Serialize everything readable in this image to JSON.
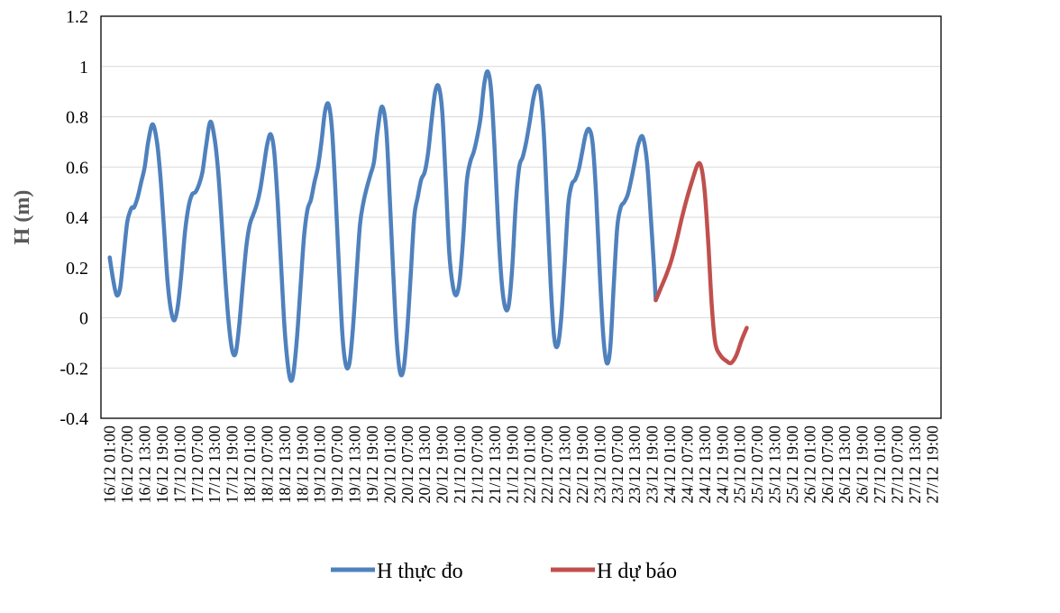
{
  "chart_data": {
    "type": "line",
    "ylabel": "H (m)",
    "ylim": [
      -0.4,
      1.2
    ],
    "yticks": [
      -0.4,
      -0.2,
      0,
      0.2,
      0.4,
      0.6,
      0.8,
      1,
      1.2
    ],
    "ytick_labels": [
      "-0.4",
      "-0.2",
      "0",
      "0.2",
      "0.4",
      "0.6",
      "0.8",
      "1",
      "1.2"
    ],
    "grid": true,
    "legend_position": "bottom",
    "categories": [
      "16/12 01:00",
      "16/12 07:00",
      "16/12 13:00",
      "16/12 19:00",
      "17/12 01:00",
      "17/12 07:00",
      "17/12 13:00",
      "17/12 19:00",
      "18/12 01:00",
      "18/12 07:00",
      "18/12 13:00",
      "18/12 19:00",
      "19/12 01:00",
      "19/12 07:00",
      "19/12 13:00",
      "19/12 19:00",
      "20/12 01:00",
      "20/12 07:00",
      "20/12 13:00",
      "20/12 19:00",
      "21/12 01:00",
      "21/12 07:00",
      "21/12 13:00",
      "21/12 19:00",
      "22/12 01:00",
      "22/12 07:00",
      "22/12 13:00",
      "22/12 19:00",
      "23/12 01:00",
      "23/12 07:00",
      "23/12 13:00",
      "23/12 19:00",
      "24/12 01:00",
      "24/12 07:00",
      "24/12 13:00",
      "24/12 19:00",
      "25/12 01:00",
      "25/12 07:00",
      "25/12 13:00",
      "25/12 19:00",
      "26/12 01:00",
      "26/12 07:00",
      "26/12 13:00",
      "26/12 19:00",
      "27/12 01:00",
      "27/12 07:00",
      "27/12 13:00",
      "27/12 19:00"
    ],
    "series": [
      {
        "name": "H thực đo",
        "color": "#4F81BD",
        "points": [
          [
            0,
            0.24
          ],
          [
            0.2,
            0.15
          ],
          [
            0.4,
            0.09
          ],
          [
            0.6,
            0.12
          ],
          [
            0.8,
            0.25
          ],
          [
            1.0,
            0.38
          ],
          [
            1.2,
            0.43
          ],
          [
            1.3,
            0.44
          ],
          [
            1.4,
            0.44
          ],
          [
            1.6,
            0.48
          ],
          [
            1.8,
            0.54
          ],
          [
            2.0,
            0.6
          ],
          [
            2.2,
            0.7
          ],
          [
            2.45,
            0.77
          ],
          [
            2.7,
            0.7
          ],
          [
            2.9,
            0.56
          ],
          [
            3.1,
            0.36
          ],
          [
            3.3,
            0.15
          ],
          [
            3.5,
            0.03
          ],
          [
            3.7,
            -0.01
          ],
          [
            3.9,
            0.05
          ],
          [
            4.1,
            0.18
          ],
          [
            4.3,
            0.34
          ],
          [
            4.5,
            0.44
          ],
          [
            4.7,
            0.49
          ],
          [
            4.9,
            0.5
          ],
          [
            5.1,
            0.53
          ],
          [
            5.3,
            0.58
          ],
          [
            5.5,
            0.68
          ],
          [
            5.75,
            0.78
          ],
          [
            6.0,
            0.71
          ],
          [
            6.2,
            0.58
          ],
          [
            6.4,
            0.38
          ],
          [
            6.6,
            0.16
          ],
          [
            6.8,
            -0.02
          ],
          [
            7.0,
            -0.13
          ],
          [
            7.2,
            -0.14
          ],
          [
            7.4,
            -0.03
          ],
          [
            7.6,
            0.13
          ],
          [
            7.8,
            0.28
          ],
          [
            8.0,
            0.37
          ],
          [
            8.2,
            0.41
          ],
          [
            8.4,
            0.45
          ],
          [
            8.6,
            0.51
          ],
          [
            8.8,
            0.6
          ],
          [
            9.0,
            0.69
          ],
          [
            9.2,
            0.73
          ],
          [
            9.4,
            0.66
          ],
          [
            9.6,
            0.46
          ],
          [
            9.8,
            0.2
          ],
          [
            10.0,
            -0.05
          ],
          [
            10.2,
            -0.2
          ],
          [
            10.35,
            -0.25
          ],
          [
            10.5,
            -0.22
          ],
          [
            10.7,
            -0.08
          ],
          [
            10.9,
            0.12
          ],
          [
            11.1,
            0.32
          ],
          [
            11.3,
            0.43
          ],
          [
            11.5,
            0.47
          ],
          [
            11.7,
            0.54
          ],
          [
            11.9,
            0.6
          ],
          [
            12.1,
            0.7
          ],
          [
            12.3,
            0.82
          ],
          [
            12.5,
            0.85
          ],
          [
            12.7,
            0.75
          ],
          [
            12.9,
            0.5
          ],
          [
            13.1,
            0.2
          ],
          [
            13.3,
            -0.07
          ],
          [
            13.5,
            -0.19
          ],
          [
            13.7,
            -0.18
          ],
          [
            13.9,
            -0.04
          ],
          [
            14.1,
            0.17
          ],
          [
            14.3,
            0.37
          ],
          [
            14.5,
            0.46
          ],
          [
            14.7,
            0.52
          ],
          [
            14.9,
            0.57
          ],
          [
            15.1,
            0.62
          ],
          [
            15.3,
            0.74
          ],
          [
            15.55,
            0.84
          ],
          [
            15.8,
            0.75
          ],
          [
            16.0,
            0.48
          ],
          [
            16.2,
            0.18
          ],
          [
            16.4,
            -0.09
          ],
          [
            16.6,
            -0.22
          ],
          [
            16.8,
            -0.2
          ],
          [
            17.0,
            -0.05
          ],
          [
            17.2,
            0.17
          ],
          [
            17.4,
            0.4
          ],
          [
            17.6,
            0.48
          ],
          [
            17.8,
            0.55
          ],
          [
            18.0,
            0.58
          ],
          [
            18.2,
            0.66
          ],
          [
            18.4,
            0.79
          ],
          [
            18.6,
            0.9
          ],
          [
            18.8,
            0.92
          ],
          [
            19.0,
            0.82
          ],
          [
            19.2,
            0.55
          ],
          [
            19.4,
            0.26
          ],
          [
            19.6,
            0.13
          ],
          [
            19.8,
            0.09
          ],
          [
            20.0,
            0.15
          ],
          [
            20.2,
            0.32
          ],
          [
            20.4,
            0.54
          ],
          [
            20.6,
            0.62
          ],
          [
            20.8,
            0.66
          ],
          [
            21.0,
            0.72
          ],
          [
            21.2,
            0.8
          ],
          [
            21.4,
            0.93
          ],
          [
            21.6,
            0.98
          ],
          [
            21.8,
            0.9
          ],
          [
            22.0,
            0.66
          ],
          [
            22.2,
            0.36
          ],
          [
            22.4,
            0.14
          ],
          [
            22.6,
            0.04
          ],
          [
            22.8,
            0.05
          ],
          [
            23.0,
            0.2
          ],
          [
            23.2,
            0.45
          ],
          [
            23.4,
            0.6
          ],
          [
            23.6,
            0.64
          ],
          [
            23.8,
            0.7
          ],
          [
            24.0,
            0.78
          ],
          [
            24.2,
            0.87
          ],
          [
            24.4,
            0.92
          ],
          [
            24.6,
            0.9
          ],
          [
            24.8,
            0.74
          ],
          [
            25.0,
            0.44
          ],
          [
            25.2,
            0.13
          ],
          [
            25.4,
            -0.08
          ],
          [
            25.6,
            -0.11
          ],
          [
            25.8,
            0.0
          ],
          [
            26.0,
            0.22
          ],
          [
            26.2,
            0.45
          ],
          [
            26.4,
            0.53
          ],
          [
            26.6,
            0.55
          ],
          [
            26.8,
            0.59
          ],
          [
            27.0,
            0.66
          ],
          [
            27.2,
            0.73
          ],
          [
            27.4,
            0.75
          ],
          [
            27.6,
            0.69
          ],
          [
            27.8,
            0.48
          ],
          [
            28.0,
            0.18
          ],
          [
            28.2,
            -0.07
          ],
          [
            28.4,
            -0.18
          ],
          [
            28.6,
            -0.12
          ],
          [
            28.8,
            0.13
          ],
          [
            29.0,
            0.36
          ],
          [
            29.2,
            0.44
          ],
          [
            29.4,
            0.46
          ],
          [
            29.6,
            0.49
          ],
          [
            29.8,
            0.55
          ],
          [
            30.0,
            0.62
          ],
          [
            30.2,
            0.69
          ],
          [
            30.45,
            0.72
          ],
          [
            30.7,
            0.62
          ],
          [
            30.9,
            0.42
          ],
          [
            31.1,
            0.2
          ],
          [
            31.2,
            0.07
          ]
        ]
      },
      {
        "name": "H dự báo",
        "color": "#C0504D",
        "points": [
          [
            31.2,
            0.07
          ],
          [
            31.5,
            0.12
          ],
          [
            31.8,
            0.17
          ],
          [
            32.1,
            0.23
          ],
          [
            32.4,
            0.31
          ],
          [
            32.7,
            0.4
          ],
          [
            33.0,
            0.48
          ],
          [
            33.3,
            0.55
          ],
          [
            33.6,
            0.61
          ],
          [
            33.8,
            0.6
          ],
          [
            34.0,
            0.5
          ],
          [
            34.2,
            0.3
          ],
          [
            34.4,
            0.05
          ],
          [
            34.6,
            -0.1
          ],
          [
            34.9,
            -0.15
          ],
          [
            35.2,
            -0.17
          ],
          [
            35.5,
            -0.18
          ],
          [
            35.8,
            -0.15
          ],
          [
            36.1,
            -0.09
          ],
          [
            36.4,
            -0.04
          ]
        ]
      }
    ]
  },
  "legend": {
    "items": [
      {
        "label": "H thực đo",
        "color": "#4F81BD"
      },
      {
        "label": "H dự báo",
        "color": "#C0504D"
      }
    ]
  }
}
